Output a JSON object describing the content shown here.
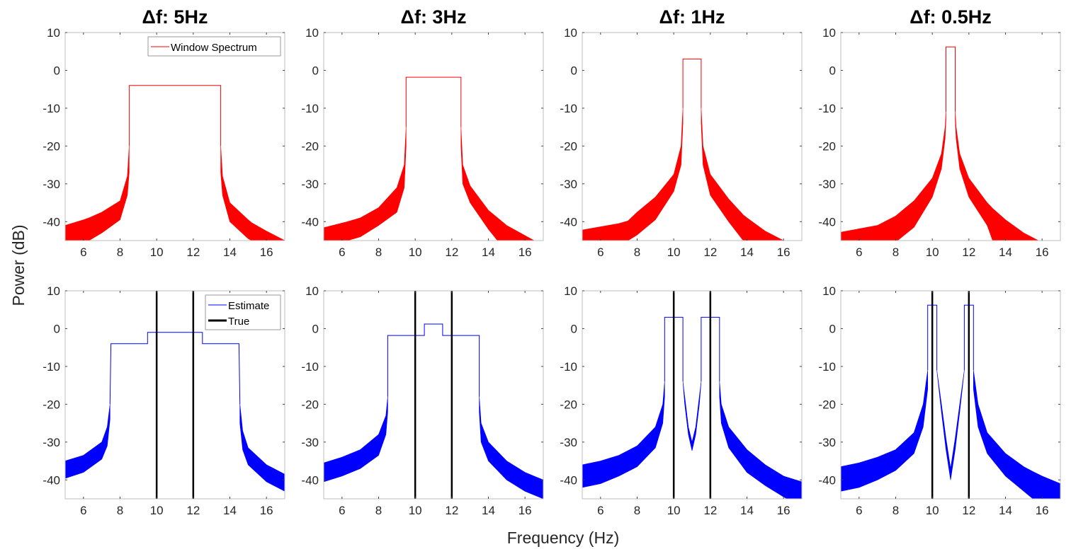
{
  "chart_data": {
    "type": "area",
    "xlabel": "Frequency (Hz)",
    "ylabel": "Power (dB)",
    "xlim": [
      5,
      17
    ],
    "ylim": [
      -45,
      10
    ],
    "xticks": [
      6,
      8,
      10,
      12,
      14,
      16
    ],
    "yticks": [
      -40,
      -30,
      -20,
      -10,
      0,
      10
    ],
    "grid": false,
    "colors": {
      "window": "#ff0000",
      "estimate": "#0000ff",
      "true": "#000000"
    },
    "panels": [
      {
        "row": 1,
        "col": 1,
        "title": "Δf: 5Hz",
        "color": "#ff0000",
        "legend": [
          {
            "label": "Window Spectrum",
            "color": "#ff0000",
            "width": 1
          }
        ],
        "legend_location": "top-right",
        "lines": [
          [
            [
              8.5,
              -20
            ],
            [
              8.5,
              -4
            ],
            [
              13.5,
              -4
            ],
            [
              13.5,
              -20
            ]
          ]
        ],
        "lobes": [
          [
            [
              5,
              -41,
              -45
            ],
            [
              6,
              -39.5,
              -45
            ],
            [
              6.3,
              -39,
              -45
            ],
            [
              7,
              -37.5,
              -43
            ],
            [
              8,
              -34.5,
              -39.5
            ],
            [
              8.4,
              -28,
              -33
            ],
            [
              8.5,
              -20,
              -27
            ]
          ],
          [
            [
              13.5,
              -20,
              -27
            ],
            [
              13.6,
              -28,
              -33
            ],
            [
              14,
              -35,
              -40
            ],
            [
              15,
              -39.5,
              -44.5
            ],
            [
              15.2,
              -40.3,
              -45
            ],
            [
              16,
              -42.5,
              -45
            ],
            [
              17,
              -45,
              -45
            ]
          ]
        ],
        "true_freqs": []
      },
      {
        "row": 1,
        "col": 2,
        "title": "Δf: 3Hz",
        "color": "#ff0000",
        "legend": [],
        "lines": [
          [
            [
              9.5,
              -15
            ],
            [
              9.5,
              -1.8
            ],
            [
              12.5,
              -1.8
            ],
            [
              12.5,
              -15
            ]
          ]
        ],
        "lobes": [
          [
            [
              5,
              -41.6,
              -45
            ],
            [
              6.3,
              -40,
              -45
            ],
            [
              7,
              -39,
              -44
            ],
            [
              8,
              -36.3,
              -41
            ],
            [
              9,
              -31,
              -37.5
            ],
            [
              9.4,
              -25,
              -31
            ],
            [
              9.5,
              -15,
              -20
            ]
          ],
          [
            [
              12.5,
              -15,
              -20
            ],
            [
              12.6,
              -25,
              -30
            ],
            [
              13,
              -30.5,
              -35
            ],
            [
              14,
              -37,
              -42
            ],
            [
              14.5,
              -39,
              -45
            ],
            [
              15,
              -41,
              -45
            ],
            [
              16.5,
              -45,
              -45
            ]
          ]
        ],
        "true_freqs": []
      },
      {
        "row": 1,
        "col": 3,
        "title": "Δf: 1Hz",
        "color": "#ff0000",
        "legend": [],
        "lines": [
          [
            [
              10.5,
              -10
            ],
            [
              10.5,
              3
            ],
            [
              11.5,
              3
            ],
            [
              11.5,
              -10
            ]
          ]
        ],
        "lobes": [
          [
            [
              5,
              -42.2,
              -45
            ],
            [
              7,
              -40.5,
              -45
            ],
            [
              7.5,
              -39.8,
              -45
            ],
            [
              8,
              -37.5,
              -43.5
            ],
            [
              9,
              -33.5,
              -39.5
            ],
            [
              10,
              -27.5,
              -32
            ],
            [
              10.4,
              -20,
              -25
            ],
            [
              10.5,
              -10,
              -14
            ]
          ],
          [
            [
              11.5,
              -10,
              -14
            ],
            [
              11.6,
              -20,
              -25
            ],
            [
              12,
              -27.5,
              -33
            ],
            [
              13,
              -34,
              -40
            ],
            [
              13.8,
              -38.2,
              -45
            ],
            [
              14,
              -39,
              -45
            ],
            [
              15,
              -42.5,
              -45
            ],
            [
              16,
              -45,
              -45
            ]
          ]
        ],
        "true_freqs": []
      },
      {
        "row": 1,
        "col": 4,
        "title": "Δf: 0.5Hz",
        "color": "#ff0000",
        "legend": [],
        "lines": [
          [
            [
              10.75,
              -11
            ],
            [
              10.75,
              6.2
            ],
            [
              11.25,
              6.2
            ],
            [
              11.25,
              -11
            ]
          ]
        ],
        "lobes": [
          [
            [
              5,
              -42.8,
              -45
            ],
            [
              7,
              -41,
              -45
            ],
            [
              8,
              -38.5,
              -45
            ],
            [
              8.1,
              -38.1,
              -45
            ],
            [
              9,
              -34.5,
              -41.5
            ],
            [
              10,
              -28.5,
              -33.5
            ],
            [
              10.5,
              -22,
              -26
            ],
            [
              10.7,
              -15,
              -18
            ],
            [
              10.75,
              -11,
              -13
            ]
          ],
          [
            [
              11.25,
              -11,
              -13
            ],
            [
              11.3,
              -15,
              -18
            ],
            [
              11.5,
              -22,
              -26
            ],
            [
              12,
              -28.5,
              -33.5
            ],
            [
              13,
              -35,
              -41
            ],
            [
              13.3,
              -36.5,
              -45
            ],
            [
              14,
              -39.5,
              -45
            ],
            [
              15,
              -43,
              -45
            ],
            [
              15.8,
              -45,
              -45
            ]
          ]
        ],
        "true_freqs": []
      },
      {
        "row": 2,
        "col": 1,
        "color": "#0000ff",
        "legend": [
          {
            "label": "Estimate",
            "color": "#0000ff",
            "width": 1
          },
          {
            "label": "True",
            "color": "#000000",
            "width": 3
          }
        ],
        "legend_location": "top-right",
        "lines": [
          [
            [
              7.45,
              -20
            ],
            [
              7.5,
              -4
            ],
            [
              9.5,
              -4
            ],
            [
              9.5,
              -1
            ],
            [
              12.5,
              -1
            ],
            [
              12.5,
              -4
            ],
            [
              14.5,
              -4
            ],
            [
              14.55,
              -20
            ]
          ]
        ],
        "lobes": [
          [
            [
              5,
              -35,
              -39.6
            ],
            [
              6,
              -33.5,
              -38
            ],
            [
              7,
              -30,
              -34.5
            ],
            [
              7.3,
              -26,
              -31
            ],
            [
              7.45,
              -20,
              -24
            ]
          ],
          [
            [
              14.55,
              -20,
              -25
            ],
            [
              14.7,
              -27,
              -32
            ],
            [
              15,
              -31.5,
              -36
            ],
            [
              16,
              -36,
              -40.5
            ],
            [
              17,
              -38.5,
              -43
            ]
          ]
        ],
        "true_freqs": [
          10,
          12
        ]
      },
      {
        "row": 2,
        "col": 2,
        "color": "#0000ff",
        "legend": [],
        "lines": [
          [
            [
              8.5,
              -18
            ],
            [
              8.5,
              -1.8
            ],
            [
              10.5,
              -1.8
            ],
            [
              10.5,
              1.2
            ],
            [
              11.5,
              1.2
            ],
            [
              11.5,
              -1.8
            ],
            [
              13.5,
              -1.8
            ],
            [
              13.5,
              -18
            ]
          ]
        ],
        "lobes": [
          [
            [
              5,
              -35.5,
              -40.5
            ],
            [
              6,
              -34,
              -39
            ],
            [
              7,
              -32,
              -37
            ],
            [
              8,
              -28,
              -33.5
            ],
            [
              8.4,
              -23,
              -28
            ],
            [
              8.5,
              -18,
              -22
            ]
          ],
          [
            [
              13.5,
              -18,
              -22
            ],
            [
              13.6,
              -25,
              -30
            ],
            [
              14,
              -30,
              -35
            ],
            [
              15,
              -35,
              -40
            ],
            [
              16,
              -38,
              -43
            ],
            [
              17,
              -40,
              -45
            ]
          ]
        ],
        "true_freqs": [
          10,
          12
        ]
      },
      {
        "row": 2,
        "col": 3,
        "color": "#0000ff",
        "legend": [],
        "lines": [
          [
            [
              9.5,
              -14
            ],
            [
              9.5,
              3
            ],
            [
              10.5,
              3
            ],
            [
              10.5,
              -14
            ]
          ],
          [
            [
              11.5,
              -14
            ],
            [
              11.5,
              3
            ],
            [
              12.5,
              3
            ],
            [
              12.5,
              -14
            ]
          ]
        ],
        "lobes": [
          [
            [
              5,
              -36,
              -42
            ],
            [
              6,
              -35,
              -41
            ],
            [
              7,
              -33.5,
              -39
            ],
            [
              8,
              -31,
              -36.5
            ],
            [
              9,
              -26,
              -31.5
            ],
            [
              9.4,
              -20,
              -25
            ],
            [
              9.5,
              -14,
              -18
            ]
          ],
          [
            [
              10.5,
              -14,
              -14
            ],
            [
              10.6,
              -18,
              -20
            ],
            [
              10.8,
              -26,
              -28
            ],
            [
              11,
              -30,
              -32.3
            ],
            [
              11.2,
              -26,
              -28
            ],
            [
              11.4,
              -18,
              -20
            ],
            [
              11.5,
              -14,
              -14
            ]
          ],
          [
            [
              12.5,
              -14,
              -18
            ],
            [
              12.6,
              -20,
              -25
            ],
            [
              13,
              -26,
              -31.5
            ],
            [
              14,
              -32,
              -38
            ],
            [
              15,
              -36,
              -41.5
            ],
            [
              16,
              -39,
              -44.5
            ],
            [
              16.2,
              -39.3,
              -45
            ],
            [
              17,
              -40.5,
              -45
            ]
          ]
        ],
        "true_freqs": [
          10,
          12
        ]
      },
      {
        "row": 2,
        "col": 4,
        "color": "#0000ff",
        "legend": [],
        "lines": [
          [
            [
              9.75,
              -11
            ],
            [
              9.75,
              6.2
            ],
            [
              10.25,
              6.2
            ],
            [
              10.25,
              -11
            ]
          ],
          [
            [
              11.75,
              -11
            ],
            [
              11.75,
              6.2
            ],
            [
              12.25,
              6.2
            ],
            [
              12.25,
              -11
            ]
          ]
        ],
        "lobes": [
          [
            [
              5,
              -36.5,
              -43
            ],
            [
              6,
              -35.5,
              -42
            ],
            [
              7,
              -34,
              -40
            ],
            [
              8,
              -32,
              -37.5
            ],
            [
              9,
              -27.5,
              -33
            ],
            [
              9.5,
              -20,
              -26
            ],
            [
              9.75,
              -11,
              -16
            ]
          ],
          [
            [
              10.25,
              -11,
              -11
            ],
            [
              10.5,
              -20,
              -22
            ],
            [
              10.75,
              -29,
              -32
            ],
            [
              11,
              -37,
              -40
            ],
            [
              11.25,
              -29,
              -32
            ],
            [
              11.5,
              -20,
              -22
            ],
            [
              11.75,
              -11,
              -11
            ]
          ],
          [
            [
              12.25,
              -11,
              -16
            ],
            [
              12.5,
              -20,
              -26
            ],
            [
              13,
              -27.5,
              -33
            ],
            [
              14,
              -33,
              -39
            ],
            [
              15,
              -36.5,
              -43
            ],
            [
              15.5,
              -37.8,
              -45
            ],
            [
              16,
              -39,
              -45
            ],
            [
              17,
              -41,
              -45
            ]
          ]
        ],
        "true_freqs": [
          10,
          12
        ]
      }
    ]
  }
}
